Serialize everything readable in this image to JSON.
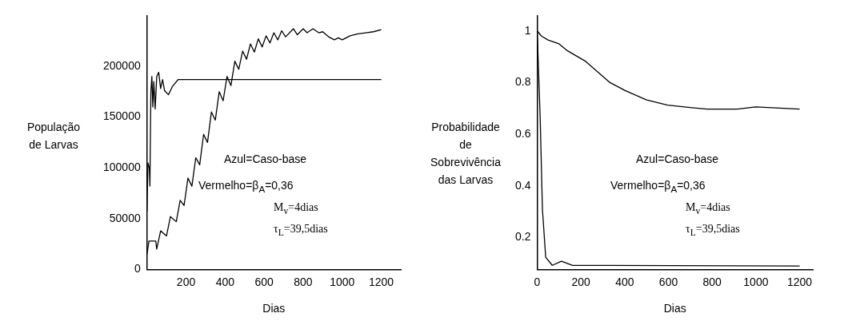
{
  "chart_data": [
    {
      "type": "line",
      "xlabel": "Dias",
      "ylabel": "População de Larvas",
      "xlim": [
        0,
        1300
      ],
      "ylim": [
        0,
        250000
      ],
      "xticks": [
        {
          "value": 0,
          "label": null
        },
        200,
        400,
        600,
        800,
        1000,
        1200
      ],
      "yticks": [
        0,
        50000,
        100000,
        150000,
        200000
      ],
      "grid": false,
      "legend": false,
      "marker": "none",
      "line_style": "solid",
      "annotations": [
        "Azul=Caso-base",
        "Vermelho=β$_{A}$=0,36",
        "M$_{v}$=4dias",
        "τ$_{L}$=39,5dias"
      ],
      "series": [
        {
          "color": "#000000",
          "x": [
            0,
            5,
            12,
            15,
            20,
            25,
            30,
            35,
            42,
            50,
            60,
            70,
            80,
            90,
            110,
            130,
            160,
            1200
          ],
          "values": [
            57000,
            105000,
            100000,
            82000,
            175000,
            190000,
            160000,
            185000,
            158000,
            190000,
            194000,
            178000,
            187000,
            176000,
            172000,
            180000,
            187000,
            187000
          ]
        },
        {
          "color": "#000000",
          "x": [
            0,
            10,
            45,
            50,
            70,
            100,
            120,
            150,
            170,
            190,
            210,
            230,
            250,
            270,
            290,
            310,
            330,
            350,
            370,
            390,
            410,
            430,
            450,
            470,
            490,
            510,
            530,
            550,
            570,
            590,
            610,
            630,
            650,
            670,
            690,
            710,
            750,
            770,
            800,
            820,
            850,
            880,
            900,
            930,
            960,
            980,
            1000,
            1040,
            1080,
            1120,
            1160,
            1200
          ],
          "values": [
            15000,
            28000,
            28000,
            20000,
            38000,
            33000,
            52000,
            47000,
            68000,
            63000,
            90000,
            82000,
            110000,
            103000,
            133000,
            125000,
            155000,
            147000,
            175000,
            166000,
            190000,
            181000,
            205000,
            197000,
            215000,
            207000,
            222000,
            214000,
            227000,
            219000,
            230000,
            223000,
            233000,
            226000,
            235000,
            229000,
            237000,
            231000,
            237000,
            233000,
            237000,
            233000,
            234000,
            229000,
            226000,
            228000,
            226000,
            230000,
            232000,
            233000,
            234000,
            236000
          ]
        }
      ]
    },
    {
      "type": "line",
      "xlabel": "Dias",
      "ylabel": "Probabilidade de Sobrevivência das Larvas",
      "xlim": [
        0,
        1260
      ],
      "ylim": [
        0.076,
        1.06
      ],
      "xticks": [
        0,
        200,
        400,
        600,
        800,
        1000,
        1200
      ],
      "yticks": [
        0.2,
        0.4,
        0.6,
        0.8,
        1
      ],
      "grid": false,
      "legend": false,
      "marker": "none",
      "line_style": "solid",
      "annotations": [
        "Azul=Caso-base",
        "Vermelho=β$_{A}$=0,36",
        "M$_{v}$=4dias",
        "τ$_{L}$=39,5dias"
      ],
      "series": [
        {
          "color": "#000000",
          "x": [
            0,
            20,
            50,
            100,
            139,
            222,
            333,
            402,
            500,
            596,
            707,
            777,
            915,
            999,
            1200
          ],
          "values": [
            1.0,
            0.98,
            0.965,
            0.95,
            0.923,
            0.882,
            0.8,
            0.769,
            0.733,
            0.713,
            0.703,
            0.697,
            0.697,
            0.706,
            0.697
          ]
        },
        {
          "color": "#000000",
          "x": [
            0,
            2,
            14,
            24,
            39,
            69,
            111,
            160,
            1200
          ],
          "values": [
            1.0,
            0.954,
            0.656,
            0.31,
            0.123,
            0.092,
            0.108,
            0.092,
            0.089
          ]
        }
      ]
    }
  ]
}
